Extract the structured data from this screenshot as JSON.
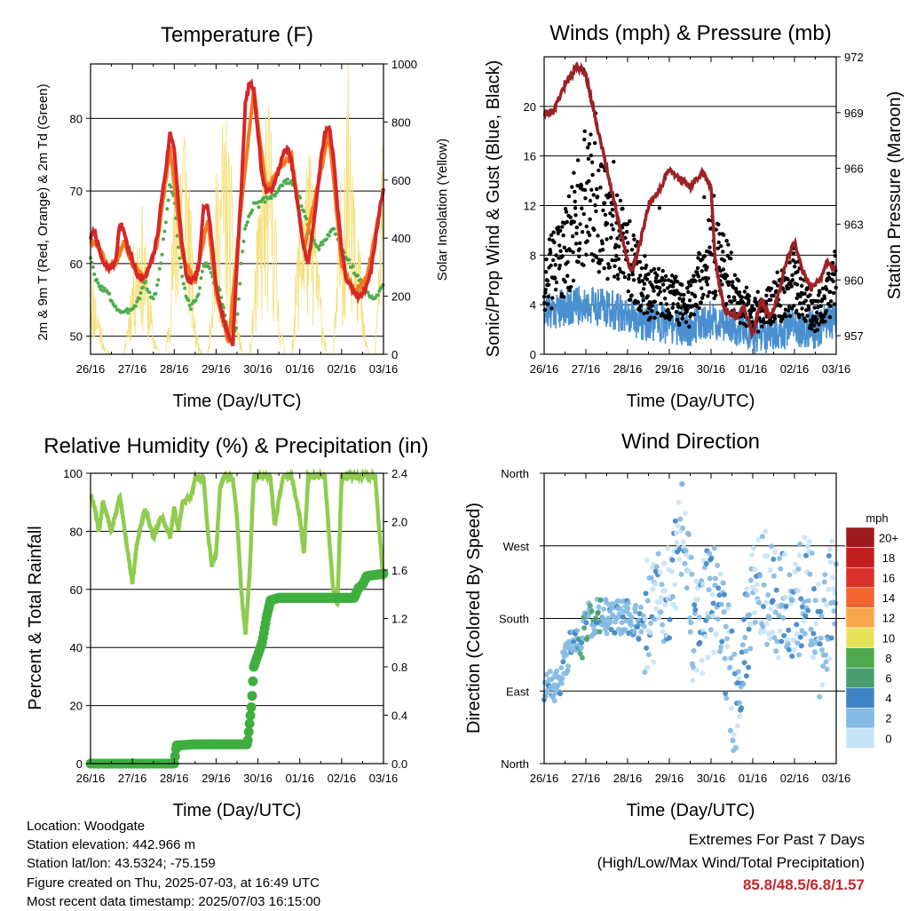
{
  "chart_data": [
    {
      "type": "line",
      "title": "Temperature (F)",
      "xlabel": "Time (Day/UTC)",
      "ylabel": "2m & 9m T (Red, Orange) & 2m Td (Green)",
      "ylabel_right": "Solar Insolation (Yellow)",
      "x_ticks": [
        "26/16",
        "27/16",
        "28/16",
        "29/16",
        "30/16",
        "01/16",
        "02/16",
        "03/16"
      ],
      "y_ticks": [
        "50",
        "60",
        "70",
        "80"
      ],
      "y_right_ticks": [
        "0",
        "200",
        "400",
        "600",
        "800",
        "1000"
      ],
      "ylim": [
        47.5,
        87.5
      ],
      "ylim_right": [
        0,
        1000
      ],
      "grid": "horizontal",
      "colors": {
        "t2m": "#d62728",
        "t9m": "#f47920",
        "td2m": "#4cae4c",
        "solar": "#f5e07a"
      },
      "series": [
        {
          "key": "t2m",
          "x": [
            0,
            0.1,
            0.2,
            0.3,
            0.4,
            0.5,
            0.6,
            0.7,
            0.8,
            0.9,
            1.0,
            1.1,
            1.3,
            1.5,
            1.6,
            1.7,
            1.8,
            1.9,
            2.0,
            2.1,
            2.2,
            2.3,
            2.4,
            2.5,
            2.6,
            2.7,
            2.8,
            2.9,
            3.0,
            3.1,
            3.2,
            3.3,
            3.4,
            3.5,
            3.6,
            3.7,
            3.8,
            3.9,
            4.0,
            4.1,
            4.2,
            4.3,
            4.4,
            4.5,
            4.6,
            4.7,
            4.8,
            5.0,
            5.1,
            5.2,
            5.3,
            5.4,
            5.5,
            5.6,
            5.7,
            5.8,
            5.9,
            6.0,
            6.1,
            6.2,
            6.3,
            6.4,
            6.5,
            6.6,
            6.7,
            6.8,
            6.9,
            7.0
          ],
          "values": [
            63.5,
            64.5,
            62,
            60,
            59.5,
            59.5,
            60.5,
            65.5,
            64.5,
            62,
            60.5,
            58.5,
            58,
            61,
            64,
            69,
            73,
            78,
            76,
            68,
            62,
            58,
            57.5,
            58,
            60,
            68,
            68,
            63,
            57,
            54,
            52,
            50,
            49,
            60,
            70,
            82,
            85,
            84,
            78,
            72,
            70,
            70,
            71,
            73,
            75,
            76,
            74,
            66,
            62,
            60,
            64,
            69,
            74,
            78,
            79,
            75,
            68,
            62,
            58,
            57,
            56,
            55.5,
            56,
            57,
            59,
            63,
            67,
            70.5
          ]
        },
        {
          "key": "t9m",
          "x": [
            0,
            0.2,
            0.4,
            0.6,
            0.8,
            1.0,
            1.3,
            1.6,
            1.9,
            2.2,
            2.5,
            2.8,
            3.0,
            3.3,
            3.6,
            3.9,
            4.2,
            4.5,
            4.8,
            5.1,
            5.4,
            5.7,
            6.0,
            6.3,
            6.6,
            6.9
          ],
          "values": [
            63,
            62.5,
            59.5,
            60,
            63,
            60,
            58,
            63,
            76,
            61,
            57.5,
            66,
            56,
            49,
            68,
            84,
            70,
            73,
            75,
            62,
            70,
            78,
            60,
            56,
            58,
            67
          ]
        },
        {
          "key": "td2m",
          "x": [
            0,
            0.1,
            0.2,
            0.3,
            0.4,
            0.5,
            0.6,
            0.7,
            0.8,
            0.9,
            1.0,
            1.1,
            1.2,
            1.3,
            1.4,
            1.5,
            1.6,
            1.7,
            1.8,
            1.9,
            2.0,
            2.1,
            2.2,
            2.3,
            2.4,
            2.5,
            2.6,
            2.7,
            2.8,
            2.9,
            3.0,
            3.1,
            3.2,
            3.3,
            3.4,
            3.5,
            3.6,
            3.7,
            3.8,
            3.9,
            4.0,
            4.2,
            4.4,
            4.6,
            4.8,
            5.0,
            5.2,
            5.4,
            5.6,
            5.8,
            6.0,
            6.2,
            6.4,
            6.6,
            6.8,
            7.0
          ],
          "values": [
            61,
            58,
            57,
            56.5,
            56,
            55,
            54,
            53.5,
            53,
            53.5,
            54,
            54.5,
            56,
            57.5,
            56,
            55,
            57,
            61,
            66,
            71,
            69,
            62,
            58,
            55,
            54,
            55,
            56,
            60,
            60,
            58,
            57,
            56,
            53,
            50,
            49,
            52,
            60,
            65,
            67,
            68,
            68,
            69,
            69.5,
            71,
            71.5,
            69,
            65,
            62,
            63,
            65,
            62,
            60,
            58,
            56,
            55,
            57
          ]
        },
        {
          "key": "solar",
          "x": [
            0,
            0.2,
            0.35,
            0.5,
            0.65,
            0.8,
            1.0,
            1.2,
            1.35,
            1.5,
            1.65,
            1.8,
            2.0,
            2.2,
            2.35,
            2.5,
            2.65,
            2.8,
            3.0,
            3.2,
            3.35,
            3.5,
            3.65,
            3.8,
            4.0,
            4.2,
            4.35,
            4.5,
            4.65,
            4.8,
            5.0,
            5.2,
            5.35,
            5.5,
            5.65,
            5.8,
            6.0,
            6.2,
            6.35,
            6.5,
            6.65,
            6.8,
            7.0
          ],
          "values": [
            300,
            150,
            20,
            0,
            0,
            0,
            300,
            500,
            300,
            80,
            0,
            0,
            500,
            900,
            620,
            100,
            0,
            0,
            550,
            800,
            600,
            120,
            0,
            0,
            420,
            780,
            720,
            160,
            0,
            0,
            500,
            650,
            520,
            200,
            0,
            0,
            600,
            960,
            700,
            140,
            0,
            0,
            760
          ]
        }
      ]
    },
    {
      "type": "scatter",
      "title": "Winds (mph) & Pressure (mb)",
      "xlabel": "Time (Day/UTC)",
      "ylabel": "Sonic/Prop Wind & Gust (Blue, Black)",
      "ylabel_right": "Station Pressure (Maroon)",
      "x_ticks": [
        "26/16",
        "27/16",
        "28/16",
        "29/16",
        "30/16",
        "01/16",
        "02/16",
        "03/16"
      ],
      "y_ticks": [
        "0",
        "4",
        "8",
        "12",
        "16",
        "20"
      ],
      "y_right_ticks": [
        "957",
        "960",
        "963",
        "966",
        "969",
        "972"
      ],
      "ylim": [
        0,
        24
      ],
      "ylim_right": [
        956,
        972
      ],
      "grid": "horizontal",
      "colors": {
        "wind": "#4a90d0",
        "gust": "#000000",
        "pressure": "#9b2226"
      },
      "series": [
        {
          "key": "wind_mean",
          "x": [
            0,
            0.5,
            1.0,
            1.5,
            2.0,
            2.5,
            3.0,
            3.5,
            4.0,
            4.5,
            5.0,
            5.5,
            6.0,
            6.5,
            7.0
          ],
          "values": [
            3.5,
            3.8,
            4.0,
            3.8,
            3.0,
            2.6,
            2.4,
            2.2,
            2.8,
            2.4,
            1.6,
            1.5,
            2.2,
            2.0,
            3.0
          ]
        },
        {
          "key": "gust_mean",
          "x": [
            0,
            0.5,
            1.0,
            1.2,
            1.5,
            2.0,
            2.5,
            3.0,
            3.5,
            4.0,
            4.3,
            4.6,
            5.0,
            5.5,
            6.0,
            6.5,
            7.0
          ],
          "values": [
            6,
            8,
            13,
            12,
            10,
            8,
            5,
            4.5,
            4,
            8,
            7,
            5,
            3,
            4,
            6,
            3,
            6
          ]
        },
        {
          "key": "pressure",
          "x": [
            0,
            0.2,
            0.5,
            0.8,
            1.0,
            1.1,
            1.3,
            1.5,
            1.8,
            2.0,
            2.1,
            2.3,
            2.5,
            2.8,
            3.0,
            3.2,
            3.5,
            3.8,
            4.0,
            4.1,
            4.3,
            4.6,
            4.8,
            5.0,
            5.2,
            5.4,
            5.6,
            5.8,
            6.0,
            6.2,
            6.4,
            6.6,
            6.8,
            7.0
          ],
          "values": [
            969,
            969,
            970.5,
            971.5,
            971,
            970,
            968,
            966,
            963,
            961,
            960.5,
            962,
            964,
            965,
            966,
            965.5,
            965,
            965.8,
            965,
            961,
            958.5,
            958,
            958.5,
            957,
            959,
            958,
            959,
            961,
            962,
            960.5,
            959.5,
            960,
            961,
            960.5
          ]
        }
      ]
    },
    {
      "type": "line",
      "title": "Relative Humidity (%) & Precipitation (in)",
      "xlabel": "Time (Day/UTC)",
      "ylabel": "Percent & Total Rainfall",
      "x_ticks": [
        "26/16",
        "27/16",
        "28/16",
        "29/16",
        "30/16",
        "01/16",
        "02/16",
        "03/16"
      ],
      "y_ticks": [
        "0",
        "20",
        "40",
        "60",
        "80",
        "100"
      ],
      "y_right_ticks": [
        "0.0",
        "0.4",
        "0.8",
        "1.2",
        "1.6",
        "2.0",
        "2.4"
      ],
      "ylim": [
        0,
        100
      ],
      "ylim_right": [
        0,
        2.4
      ],
      "grid": "horizontal",
      "colors": {
        "rh": "#8fcc4f",
        "precip": "#3fae3f"
      },
      "series": [
        {
          "key": "rh",
          "x": [
            0,
            0.1,
            0.2,
            0.3,
            0.5,
            0.7,
            0.9,
            1.0,
            1.1,
            1.3,
            1.5,
            1.6,
            1.7,
            1.9,
            2.0,
            2.1,
            2.2,
            2.4,
            2.5,
            2.7,
            2.8,
            2.9,
            3.0,
            3.1,
            3.2,
            3.4,
            3.5,
            3.6,
            3.7,
            3.8,
            3.9,
            4.1,
            4.3,
            4.4,
            4.6,
            4.7,
            4.8,
            5.0,
            5.1,
            5.2,
            5.4,
            5.6,
            5.7,
            5.8,
            5.9,
            6.0,
            6.1,
            6.3,
            6.5,
            6.8,
            6.9,
            7.0
          ],
          "values": [
            93,
            88,
            80,
            90,
            80,
            92,
            72,
            62,
            75,
            88,
            78,
            82,
            85,
            78,
            88,
            80,
            90,
            92,
            98,
            99,
            80,
            68,
            72,
            96,
            99,
            98,
            85,
            60,
            44,
            65,
            99,
            99,
            99,
            82,
            99,
            99,
            99,
            85,
            72,
            99,
            99,
            99,
            78,
            60,
            55,
            99,
            99,
            99,
            99,
            99,
            80,
            63
          ]
        },
        {
          "key": "precip",
          "x": [
            0,
            1.0,
            2.0,
            2.05,
            2.5,
            3.0,
            3.5,
            3.75,
            3.85,
            3.9,
            4.0,
            4.1,
            4.2,
            4.3,
            4.5,
            5.0,
            5.5,
            6.0,
            6.3,
            6.4,
            6.5,
            6.6,
            6.8,
            7.0
          ],
          "values": [
            0,
            0,
            0,
            0.15,
            0.16,
            0.16,
            0.16,
            0.16,
            0.5,
            0.8,
            0.9,
            1.0,
            1.2,
            1.35,
            1.37,
            1.37,
            1.37,
            1.37,
            1.37,
            1.45,
            1.48,
            1.55,
            1.56,
            1.57
          ]
        }
      ]
    },
    {
      "type": "scatter",
      "title": "Wind Direction",
      "xlabel": "Time (Day/UTC)",
      "ylabel": "Direction (Colored By Speed)",
      "x_ticks": [
        "26/16",
        "27/16",
        "28/16",
        "29/16",
        "30/16",
        "01/16",
        "02/16",
        "03/16"
      ],
      "y_ticks": [
        "North",
        "East",
        "South",
        "West",
        "North"
      ],
      "ylim": [
        0,
        360
      ],
      "grid": "horizontal",
      "legend_title": "mph",
      "legend_labels": [
        "20+",
        "18",
        "16",
        "14",
        "12",
        "10",
        "8",
        "6",
        "4",
        "2",
        "0"
      ],
      "legend_colors": [
        "#9e1b1e",
        "#c1201f",
        "#d9302a",
        "#f26430",
        "#f8a64a",
        "#e7e35a",
        "#4ea84e",
        "#4a9d6e",
        "#3f84c5",
        "#83b9e3",
        "#c6e3f6"
      ],
      "legend_placement": "right",
      "series": [
        {
          "key": "direction",
          "x": [
            0,
            0.3,
            0.6,
            0.9,
            1.0,
            1.3,
            1.6,
            2.0,
            2.3,
            2.6,
            3.0,
            3.3,
            3.6,
            4.0,
            4.3,
            4.6,
            5.0,
            5.3,
            5.6,
            6.0,
            6.3,
            6.6,
            7.0
          ],
          "values": [
            90,
            95,
            140,
            150,
            175,
            185,
            180,
            180,
            175,
            190,
            210,
            300,
            150,
            210,
            170,
            60,
            210,
            220,
            200,
            180,
            240,
            150,
            230
          ]
        }
      ]
    }
  ],
  "info": {
    "location": "Location: Woodgate",
    "elevation": "Station elevation: 442.966 m",
    "latlon": "Station lat/lon: 43.5324; -75.159",
    "created": "Figure created on Thu, 2025-07-03, at 16:49 UTC",
    "recent": "Most recent data timestamp: 2025/07/03 16:15:00"
  },
  "extremes": {
    "title": "Extremes For Past 7 Days",
    "subtitle": "(High/Low/Max Wind/Total Precipitation)",
    "values": "85.8/48.5/6.8/1.57"
  }
}
